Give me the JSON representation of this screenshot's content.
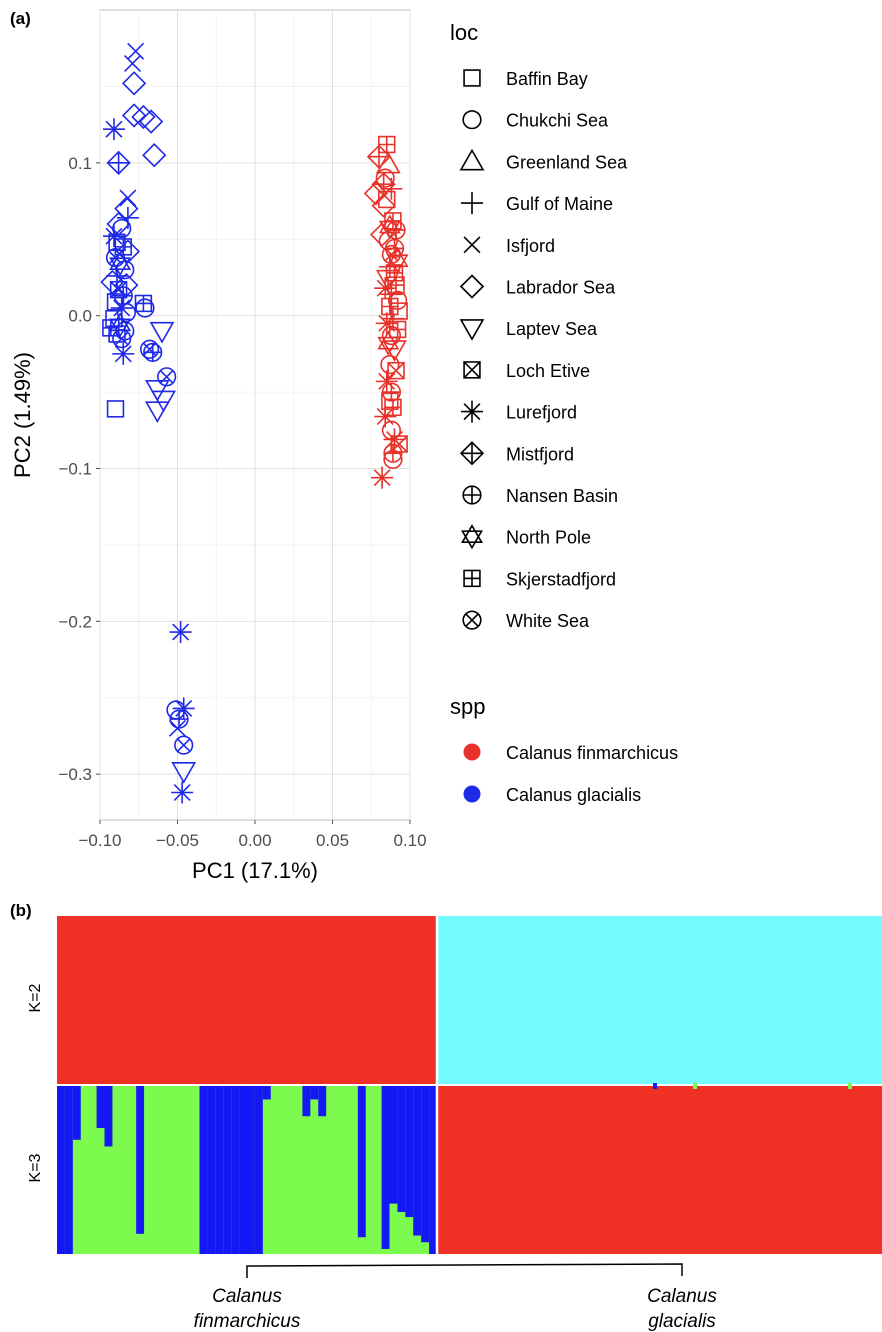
{
  "panels": {
    "a": "(a)",
    "b": "(b)"
  },
  "chart_data": [
    {
      "type": "scatter",
      "xlabel": "PC1 (17.1%)",
      "ylabel": "PC2 (1.49%)",
      "xlim": [
        -0.1,
        0.1
      ],
      "ylim": [
        -0.33,
        0.2
      ],
      "xticks": [
        "−0.10",
        "−0.05",
        "0.00",
        "0.05",
        "0.10"
      ],
      "yticks": [
        "−0.3",
        "−0.2",
        "−0.1",
        "0.0",
        "0.1"
      ],
      "grid": true,
      "legend_placement": "right",
      "legend_loc": {
        "title": "loc",
        "items": [
          {
            "label": "Baffin Bay",
            "shape": "square"
          },
          {
            "label": "Chukchi Sea",
            "shape": "circle"
          },
          {
            "label": "Greenland Sea",
            "shape": "triangle-up"
          },
          {
            "label": "Gulf of Maine",
            "shape": "plus"
          },
          {
            "label": "Isfjord",
            "shape": "cross"
          },
          {
            "label": "Labrador Sea",
            "shape": "diamond"
          },
          {
            "label": "Laptev Sea",
            "shape": "triangle-down"
          },
          {
            "label": "Loch Etive",
            "shape": "square-cross"
          },
          {
            "label": "Lurefjord",
            "shape": "asterisk"
          },
          {
            "label": "Mistfjord",
            "shape": "diamond-plus"
          },
          {
            "label": "Nansen Basin",
            "shape": "circle-plus"
          },
          {
            "label": "North Pole",
            "shape": "star-of-david"
          },
          {
            "label": "Skjerstadfjord",
            "shape": "square-plus"
          },
          {
            "label": "White Sea",
            "shape": "circle-cross"
          }
        ]
      },
      "legend_spp": {
        "title": "spp",
        "items": [
          {
            "label": "Calanus finmarchicus",
            "color": "#E8312A"
          },
          {
            "label": "Calanus glacialis",
            "color": "#1F29E8"
          }
        ]
      },
      "series": [
        {
          "name": "Calanus glacialis",
          "color": "#1F29E8",
          "points": [
            {
              "x": -0.077,
              "y": 0.173,
              "shape": "cross"
            },
            {
              "x": -0.079,
              "y": 0.165,
              "shape": "cross"
            },
            {
              "x": -0.078,
              "y": 0.152,
              "shape": "diamond"
            },
            {
              "x": -0.078,
              "y": 0.131,
              "shape": "diamond"
            },
            {
              "x": -0.072,
              "y": 0.13,
              "shape": "diamond"
            },
            {
              "x": -0.067,
              "y": 0.127,
              "shape": "diamond"
            },
            {
              "x": -0.091,
              "y": 0.122,
              "shape": "asterisk"
            },
            {
              "x": -0.065,
              "y": 0.105,
              "shape": "diamond"
            },
            {
              "x": -0.088,
              "y": 0.1,
              "shape": "diamond-plus"
            },
            {
              "x": -0.082,
              "y": 0.077,
              "shape": "cross"
            },
            {
              "x": -0.083,
              "y": 0.07,
              "shape": "diamond"
            },
            {
              "x": -0.082,
              "y": 0.064,
              "shape": "plus"
            },
            {
              "x": -0.088,
              "y": 0.06,
              "shape": "diamond"
            },
            {
              "x": -0.086,
              "y": 0.057,
              "shape": "circle"
            },
            {
              "x": -0.091,
              "y": 0.052,
              "shape": "asterisk"
            },
            {
              "x": -0.089,
              "y": 0.048,
              "shape": "square"
            },
            {
              "x": -0.085,
              "y": 0.045,
              "shape": "square-plus"
            },
            {
              "x": -0.082,
              "y": 0.042,
              "shape": "diamond"
            },
            {
              "x": -0.09,
              "y": 0.038,
              "shape": "circle-cross"
            },
            {
              "x": -0.087,
              "y": 0.034,
              "shape": "star-of-david"
            },
            {
              "x": -0.084,
              "y": 0.03,
              "shape": "circle"
            },
            {
              "x": -0.089,
              "y": 0.026,
              "shape": "plus"
            },
            {
              "x": -0.092,
              "y": 0.022,
              "shape": "diamond"
            },
            {
              "x": -0.083,
              "y": 0.02,
              "shape": "diamond"
            },
            {
              "x": -0.088,
              "y": 0.017,
              "shape": "square-cross"
            },
            {
              "x": -0.085,
              "y": 0.013,
              "shape": "circle-plus"
            },
            {
              "x": -0.09,
              "y": 0.009,
              "shape": "square"
            },
            {
              "x": -0.086,
              "y": 0.005,
              "shape": "asterisk"
            },
            {
              "x": -0.083,
              "y": 0.002,
              "shape": "circle"
            },
            {
              "x": -0.091,
              "y": -0.002,
              "shape": "square"
            },
            {
              "x": -0.087,
              "y": -0.006,
              "shape": "star-of-david"
            },
            {
              "x": -0.093,
              "y": -0.008,
              "shape": "square-plus"
            },
            {
              "x": -0.084,
              "y": -0.01,
              "shape": "circle"
            },
            {
              "x": -0.089,
              "y": -0.012,
              "shape": "square"
            },
            {
              "x": -0.086,
              "y": -0.015,
              "shape": "circle-cross"
            },
            {
              "x": -0.072,
              "y": 0.008,
              "shape": "square-plus"
            },
            {
              "x": -0.071,
              "y": 0.005,
              "shape": "circle"
            },
            {
              "x": -0.06,
              "y": -0.01,
              "shape": "triangle-down"
            },
            {
              "x": -0.085,
              "y": -0.025,
              "shape": "asterisk"
            },
            {
              "x": -0.068,
              "y": -0.022,
              "shape": "circle-cross"
            },
            {
              "x": -0.066,
              "y": -0.024,
              "shape": "circle-plus"
            },
            {
              "x": -0.057,
              "y": -0.04,
              "shape": "circle-cross"
            },
            {
              "x": -0.063,
              "y": -0.048,
              "shape": "triangle-down"
            },
            {
              "x": -0.059,
              "y": -0.055,
              "shape": "triangle-down"
            },
            {
              "x": -0.063,
              "y": -0.062,
              "shape": "triangle-down"
            },
            {
              "x": -0.09,
              "y": -0.061,
              "shape": "square"
            },
            {
              "x": -0.048,
              "y": -0.207,
              "shape": "asterisk"
            },
            {
              "x": -0.051,
              "y": -0.258,
              "shape": "circle"
            },
            {
              "x": -0.046,
              "y": -0.257,
              "shape": "asterisk"
            },
            {
              "x": -0.049,
              "y": -0.264,
              "shape": "circle-plus"
            },
            {
              "x": -0.05,
              "y": -0.27,
              "shape": "cross"
            },
            {
              "x": -0.046,
              "y": -0.281,
              "shape": "circle-cross"
            },
            {
              "x": -0.046,
              "y": -0.298,
              "shape": "triangle-down"
            },
            {
              "x": -0.047,
              "y": -0.312,
              "shape": "asterisk"
            }
          ]
        },
        {
          "name": "Calanus finmarchicus",
          "color": "#E8312A",
          "points": [
            {
              "x": 0.085,
              "y": 0.112,
              "shape": "square-plus"
            },
            {
              "x": 0.08,
              "y": 0.104,
              "shape": "diamond-plus"
            },
            {
              "x": 0.086,
              "y": 0.099,
              "shape": "triangle-up"
            },
            {
              "x": 0.084,
              "y": 0.09,
              "shape": "circle"
            },
            {
              "x": 0.083,
              "y": 0.086,
              "shape": "diamond-plus"
            },
            {
              "x": 0.088,
              "y": 0.083,
              "shape": "plus"
            },
            {
              "x": 0.078,
              "y": 0.08,
              "shape": "diamond"
            },
            {
              "x": 0.085,
              "y": 0.076,
              "shape": "square"
            },
            {
              "x": 0.083,
              "y": 0.072,
              "shape": "diamond"
            },
            {
              "x": 0.089,
              "y": 0.062,
              "shape": "square-plus"
            },
            {
              "x": 0.087,
              "y": 0.058,
              "shape": "star-of-david"
            },
            {
              "x": 0.091,
              "y": 0.056,
              "shape": "circle-plus"
            },
            {
              "x": 0.082,
              "y": 0.053,
              "shape": "diamond"
            },
            {
              "x": 0.086,
              "y": 0.049,
              "shape": "circle"
            },
            {
              "x": 0.09,
              "y": 0.044,
              "shape": "circle-plus"
            },
            {
              "x": 0.088,
              "y": 0.04,
              "shape": "circle-cross"
            },
            {
              "x": 0.092,
              "y": 0.036,
              "shape": "star-of-david"
            },
            {
              "x": 0.087,
              "y": 0.032,
              "shape": "plus"
            },
            {
              "x": 0.09,
              "y": 0.028,
              "shape": "square-plus"
            },
            {
              "x": 0.086,
              "y": 0.024,
              "shape": "triangle-down"
            },
            {
              "x": 0.091,
              "y": 0.02,
              "shape": "square-plus"
            },
            {
              "x": 0.084,
              "y": 0.018,
              "shape": "asterisk"
            },
            {
              "x": 0.088,
              "y": 0.014,
              "shape": "plus"
            },
            {
              "x": 0.092,
              "y": 0.01,
              "shape": "circle"
            },
            {
              "x": 0.087,
              "y": 0.006,
              "shape": "square-plus"
            },
            {
              "x": 0.093,
              "y": 0.003,
              "shape": "square"
            },
            {
              "x": 0.089,
              "y": -0.002,
              "shape": "plus"
            },
            {
              "x": 0.085,
              "y": -0.005,
              "shape": "asterisk"
            },
            {
              "x": 0.092,
              "y": -0.009,
              "shape": "square-plus"
            },
            {
              "x": 0.088,
              "y": -0.013,
              "shape": "circle"
            },
            {
              "x": 0.086,
              "y": -0.018,
              "shape": "star-of-david"
            },
            {
              "x": 0.09,
              "y": -0.022,
              "shape": "triangle-down"
            },
            {
              "x": 0.087,
              "y": -0.032,
              "shape": "circle"
            },
            {
              "x": 0.091,
              "y": -0.036,
              "shape": "square-cross"
            },
            {
              "x": 0.085,
              "y": -0.043,
              "shape": "asterisk"
            },
            {
              "x": 0.088,
              "y": -0.05,
              "shape": "circle-plus"
            },
            {
              "x": 0.087,
              "y": -0.056,
              "shape": "square"
            },
            {
              "x": 0.089,
              "y": -0.06,
              "shape": "square-plus"
            },
            {
              "x": 0.084,
              "y": -0.066,
              "shape": "asterisk"
            },
            {
              "x": 0.088,
              "y": -0.075,
              "shape": "circle"
            },
            {
              "x": 0.09,
              "y": -0.081,
              "shape": "asterisk"
            },
            {
              "x": 0.093,
              "y": -0.084,
              "shape": "square-cross"
            },
            {
              "x": 0.089,
              "y": -0.09,
              "shape": "circle-plus"
            },
            {
              "x": 0.089,
              "y": -0.094,
              "shape": "circle"
            },
            {
              "x": 0.082,
              "y": -0.106,
              "shape": "asterisk"
            }
          ]
        }
      ]
    },
    {
      "type": "stacked-bar",
      "rows": [
        "K=2",
        "K=3"
      ],
      "groups": [
        "Calanus finmarchicus",
        "Calanus glacialis"
      ],
      "group_labels": [
        "Calanus finmarchicus",
        "Calanus glacialis"
      ],
      "n_individuals": [
        48,
        56
      ],
      "colors": {
        "red": "#EE3124",
        "cyan": "#75FBFD",
        "green": "#7CFA4D",
        "blue": "#1318F5"
      },
      "k2": {
        "Calanus finmarchicus": {
          "red": 1.0,
          "cyan": 0.0
        },
        "Calanus glacialis": {
          "red": 0.0,
          "cyan": 1.0
        }
      },
      "k3": {
        "Calanus finmarchicus_blue_fraction": [
          1,
          1,
          0.32,
          0,
          0,
          0.25,
          0.36,
          0,
          0,
          0,
          0.88,
          0,
          0,
          0,
          0,
          0,
          0,
          0,
          1,
          1,
          1,
          1,
          1,
          1,
          1,
          1,
          0.08,
          0,
          0,
          0,
          0,
          0.18,
          0.08,
          0.18,
          0,
          0,
          0,
          0,
          0.9,
          0,
          0,
          0.97,
          0.7,
          0.75,
          0.78,
          0.89,
          0.93,
          1
        ],
        "Calanus glacialis_red_fraction": 1.0
      }
    }
  ]
}
